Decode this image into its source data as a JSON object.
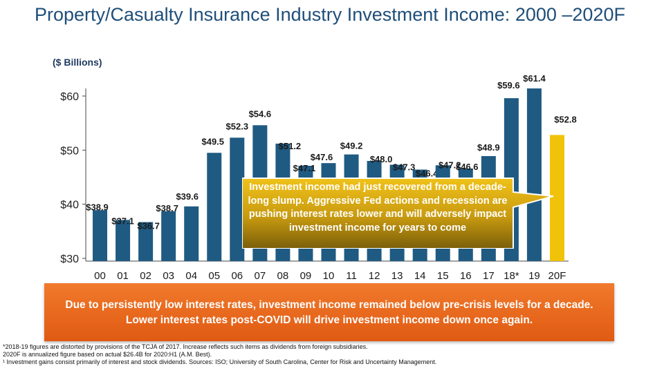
{
  "title": "Property/Casualty Insurance Industry Investment Income: 2000 –2020F",
  "unit_label": "($ Billions)",
  "callout": "Investment income had just recovered from a decade-long slump.  Aggressive Fed actions and recession are pushing interest rates lower and will adversely impact investment income for years to come",
  "banner": "Due to persistently low interest rates, investment income remained below pre-crisis levels for a decade.  Lower interest rates post-COVID will drive investment income down once again.",
  "footnotes": [
    "*2018-19 figures are distorted by provisions of the TCJA of 2017.  Increase reflects such items as dividends from foreign subsidiaries.",
    "2020F is annualized figure based on actual $26.4B for 2020:H1 (A.M. Best).",
    "¹ Investment gains consist primarily of interest and stock dividends. Sources: ISO; University of South Carolina, Center for Risk and Uncertainty Management."
  ],
  "colors": {
    "bar": "#1f5a82",
    "forecast": "#f0c20a",
    "title": "#1f4e79",
    "banner": "#e8671c",
    "callout": "#a07a0a"
  },
  "chart_data": {
    "type": "bar",
    "categories": [
      "00",
      "01",
      "02",
      "03",
      "04",
      "05",
      "06",
      "07",
      "08",
      "09",
      "10",
      "11",
      "12",
      "13",
      "14",
      "15",
      "16",
      "17",
      "18*",
      "19",
      "20F"
    ],
    "values": [
      38.9,
      37.1,
      36.7,
      38.7,
      39.6,
      49.5,
      52.3,
      54.6,
      51.2,
      47.1,
      47.6,
      49.2,
      48.0,
      47.3,
      46.4,
      47.2,
      46.6,
      48.9,
      59.6,
      61.4,
      52.8
    ],
    "labels": [
      "$38.9",
      "$37.1",
      "$36.7",
      "$38.7",
      "$39.6",
      "$49.5",
      "$52.3",
      "$54.6",
      "$51.2",
      "$47.1",
      "$47.6",
      "$49.2",
      "$48.0",
      "$47.3",
      "$46.4",
      "$47.2",
      "$46.6",
      "$48.9",
      "$59.6",
      "$61.4",
      "$52.8"
    ],
    "forecast_index": 20,
    "yticks": [
      30,
      40,
      50,
      60
    ],
    "ytick_labels": [
      "$30",
      "$40",
      "$50",
      "$60"
    ],
    "ylim": [
      30,
      62
    ],
    "title": "Property/Casualty Insurance Industry Investment Income: 2000 –2020F",
    "ylabel": "($ Billions)",
    "xlabel": ""
  }
}
